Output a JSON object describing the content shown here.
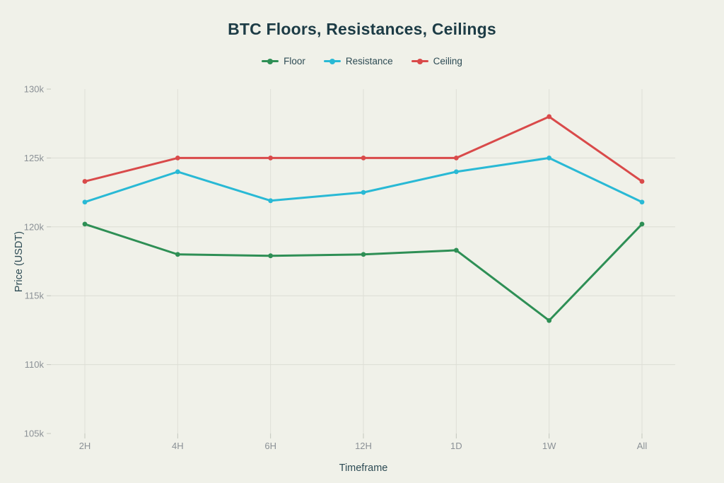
{
  "page": {
    "background_color": "#f0f1e9"
  },
  "colors": {
    "title_text": "#1d3c46",
    "axis_title_text": "#2d4b54",
    "legend_text": "#2d4b54",
    "tick_label_text": "#8b9196",
    "gridline": "#dcddd4",
    "tick_mark": "#c3c6bd"
  },
  "chart_data": {
    "type": "line",
    "title": "BTC Floors, Resistances, Ceilings",
    "xlabel": "Timeframe",
    "ylabel": "Price (USDT)",
    "legend_position": "top",
    "grid": true,
    "marker": "circle",
    "categories": [
      "2H",
      "4H",
      "6H",
      "12H",
      "1D",
      "1W",
      "All"
    ],
    "series": [
      {
        "name": "Floor",
        "color": "#2e8f55",
        "values": [
          120.2,
          118.0,
          117.9,
          118.0,
          118.3,
          113.2,
          120.2
        ]
      },
      {
        "name": "Resistance",
        "color": "#29b9d5",
        "values": [
          121.8,
          124.0,
          121.9,
          122.5,
          124.0,
          125.0,
          121.8
        ]
      },
      {
        "name": "Ceiling",
        "color": "#d94a4a",
        "values": [
          123.3,
          125.0,
          125.0,
          125.0,
          125.0,
          128.0,
          123.3
        ]
      }
    ],
    "ylim": [
      105,
      130
    ],
    "yticks": [
      {
        "value": 105,
        "label": "105k"
      },
      {
        "value": 110,
        "label": "110k"
      },
      {
        "value": 115,
        "label": "115k"
      },
      {
        "value": 120,
        "label": "120k"
      },
      {
        "value": 125,
        "label": "125k"
      },
      {
        "value": 130,
        "label": "130k"
      }
    ]
  }
}
